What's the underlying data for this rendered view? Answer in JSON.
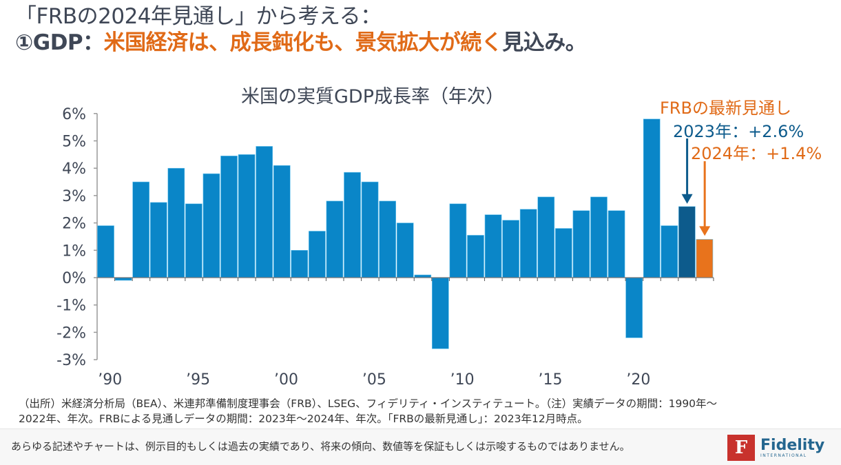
{
  "header": {
    "line1": "「FRBの2024年見通し」から考える：",
    "line2_prefix": "①GDP：",
    "line2_highlight": "米国経済は、成長鈍化も、景気拡大が続く",
    "line2_suffix": "見込み。"
  },
  "annotation": {
    "heading": "FRBの最新見通し",
    "forecast_2023": "2023年：+2.6%",
    "forecast_2024": "2024年：+1.4%"
  },
  "colors": {
    "actual": "#0a86c8",
    "forecast_2023": "#0d5b8c",
    "forecast_2024": "#e8731c",
    "highlight_text": "#e06a17"
  },
  "chart_data": {
    "type": "bar",
    "title": "米国の実質GDP成長率（年次）",
    "xlabel": "",
    "ylabel": "",
    "ylim": [
      -3,
      6
    ],
    "yticks": [
      6,
      5,
      4,
      3,
      2,
      1,
      0,
      -1,
      -2,
      -3
    ],
    "ytick_labels": [
      "6%",
      "5%",
      "4%",
      "3%",
      "2%",
      "1%",
      "0%",
      "-1%",
      "-2%",
      "-3%"
    ],
    "xtick_years": [
      1990,
      1995,
      2000,
      2005,
      2010,
      2015,
      2020
    ],
    "xtick_labels": [
      "’90",
      "’95",
      "’00",
      "’05",
      "’10",
      "’15",
      "’20"
    ],
    "categories": [
      1990,
      1991,
      1992,
      1993,
      1994,
      1995,
      1996,
      1997,
      1998,
      1999,
      2000,
      2001,
      2002,
      2003,
      2004,
      2005,
      2006,
      2007,
      2008,
      2009,
      2010,
      2011,
      2012,
      2013,
      2014,
      2015,
      2016,
      2017,
      2018,
      2019,
      2020,
      2021,
      2022,
      2023,
      2024
    ],
    "values": [
      1.9,
      -0.1,
      3.5,
      2.75,
      4.0,
      2.7,
      3.8,
      4.45,
      4.5,
      4.8,
      4.1,
      1.0,
      1.7,
      2.8,
      3.85,
      3.5,
      2.8,
      2.0,
      0.1,
      -2.6,
      2.7,
      1.55,
      2.3,
      2.1,
      2.5,
      2.95,
      1.8,
      2.45,
      2.95,
      2.45,
      -2.2,
      5.8,
      1.9,
      2.6,
      1.4
    ],
    "series_kind": [
      "actual",
      "actual",
      "actual",
      "actual",
      "actual",
      "actual",
      "actual",
      "actual",
      "actual",
      "actual",
      "actual",
      "actual",
      "actual",
      "actual",
      "actual",
      "actual",
      "actual",
      "actual",
      "actual",
      "actual",
      "actual",
      "actual",
      "actual",
      "actual",
      "actual",
      "actual",
      "actual",
      "actual",
      "actual",
      "actual",
      "actual",
      "actual",
      "actual",
      "forecast_2023",
      "forecast_2024"
    ],
    "grid": false
  },
  "notes": {
    "line1": "（出所）米経済分析局（BEA）、米連邦準備制度理事会（FRB）、LSEG、フィデリティ・インスティテュート。（注）実績データの期間：1990年～",
    "line2": "2022年、年次。FRBによる見通しデータの期間：2023年～2024年、年次。「FRBの最新見通し」：2023年12月時点。"
  },
  "footer": {
    "disclaimer": "あらゆる記述やチャートは、例示目的もしくは過去の実績であり、将来の傾向、数値等を保証もしくは示唆するものではありません。",
    "logo_mark": "F",
    "logo_name": "Fidelity",
    "logo_sub": "INTERNATIONAL"
  }
}
